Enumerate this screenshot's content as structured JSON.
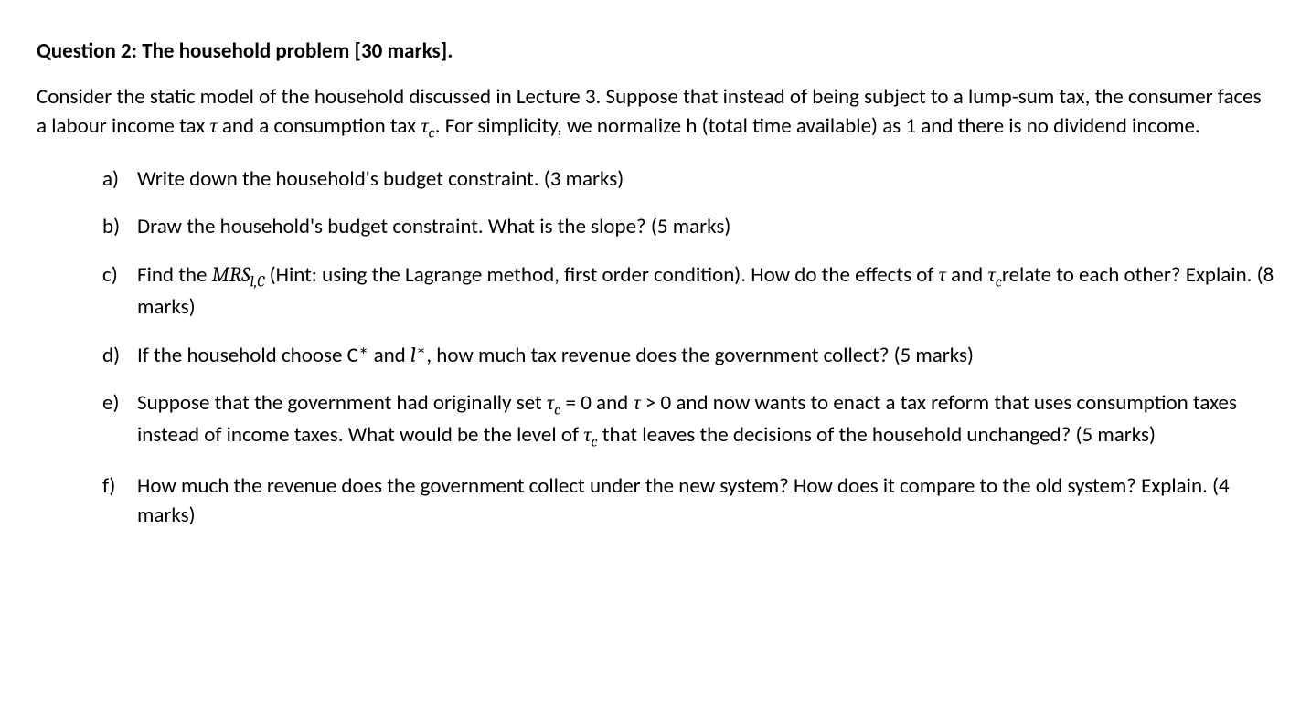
{
  "title": "Question 2: The household problem [30 marks].",
  "intro_parts": {
    "p1": "Consider the static model of the household discussed in Lecture 3. Suppose that instead of being subject to a lump-sum tax, the consumer faces a labour income tax ",
    "tau1": "τ",
    "p2": " and a consumption tax ",
    "tau2": "τ",
    "tau2_sub": "c",
    "p3": ". For simplicity, we normalize h (total time available) as 1 and there is no dividend income."
  },
  "items": {
    "a": {
      "marker": "a)",
      "text": "Write down the household's budget constraint. (3 marks)"
    },
    "b": {
      "marker": "b)",
      "text": "Draw the household's budget constraint. What is the slope? (5 marks)"
    },
    "c": {
      "marker": "c)",
      "p1": "Find the ",
      "mrs": "MRS",
      "mrs_sub": "l,C",
      "p2": " (Hint: using the Lagrange method, first order condition). How do the effects of ",
      "tau1": "τ",
      "p3": " and ",
      "tau2": "τ",
      "tau2_sub": "c",
      "p4": "relate to each other? Explain. (8 marks)"
    },
    "d": {
      "marker": "d)",
      "p1": "If the household choose C* and ",
      "lstar": "l",
      "p2": "*, how much tax revenue does the government collect? (5 marks)"
    },
    "e": {
      "marker": "e)",
      "p1": "Suppose that the government had originally set ",
      "tau_c": "τ",
      "tau_c_sub": "c",
      "eq0": " = 0",
      "p2": " and ",
      "tau": "τ",
      "gt0": " > 0",
      "p3": " and now wants to enact a tax reform that uses consumption taxes instead of income taxes. What would be the level of ",
      "tau_c2": "τ",
      "tau_c2_sub": "c",
      "p4": " that leaves the decisions of the household unchanged? (5 marks)"
    },
    "f": {
      "marker": "f)",
      "text": "How much the revenue does the government collect under the new system? How does it compare to the old system? Explain. (4 marks)"
    }
  }
}
